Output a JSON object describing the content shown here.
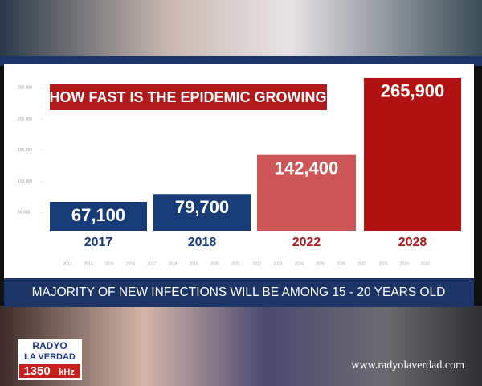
{
  "chart_data": {
    "type": "bar",
    "title": "HOW FAST IS THE EPIDEMIC GROWING",
    "categories": [
      "2017",
      "2018",
      "2022",
      "2028"
    ],
    "values": [
      67100,
      79700,
      142400,
      265900
    ],
    "value_labels": [
      "67,100",
      "79,700",
      "142,400",
      "265,900"
    ],
    "colors": [
      "#173c78",
      "#173c78",
      "#cf5656",
      "#b01212"
    ],
    "label_colors": [
      "#173c78",
      "#173c78",
      "#a81c1c",
      "#a81c1c"
    ],
    "ylim": [
      0,
      300000
    ],
    "yticks": [
      {
        "value": 50000,
        "label": "50,000"
      },
      {
        "value": 100000,
        "label": "100,000"
      },
      {
        "value": 150000,
        "label": "150,000"
      },
      {
        "value": 200000,
        "label": "200,000"
      },
      {
        "value": 250000,
        "label": "250,000"
      }
    ],
    "timeline_labels": [
      "2013",
      "2014",
      "2015",
      "2016",
      "2017",
      "2018",
      "2019",
      "2020",
      "2021",
      "2022",
      "2023",
      "2024",
      "2025",
      "2026",
      "2027",
      "2028",
      "2029",
      "2030"
    ]
  },
  "banner": "MAJORITY OF NEW INFECTIONS WILL BE AMONG 15 - 20 YEARS OLD",
  "logo": {
    "line1": "RADYO",
    "line2": "LA VERDAD",
    "frequency": "1350",
    "unit": "kHz"
  },
  "website": "www.radyolaverdad.com"
}
